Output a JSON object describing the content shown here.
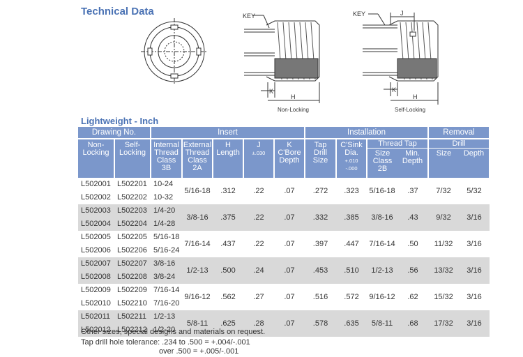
{
  "section_title": "Technical Data",
  "drawings": {
    "key_label_1": "KEY",
    "key_label_2": "KEY",
    "dim_j": "J",
    "dim_k_1": "K",
    "dim_h_1": "H",
    "dim_k_2": "K",
    "dim_h_2": "H",
    "caption_non_locking": "Non-Locking",
    "caption_self_locking": "Self-Locking"
  },
  "table_title": "Lightweight - Inch",
  "headers": {
    "drawing_no": "Drawing No.",
    "insert": "Insert",
    "installation": "Installation",
    "removal": "Removal",
    "non_locking": [
      "Non-",
      "Locking"
    ],
    "self_locking": [
      "Self-",
      "Locking"
    ],
    "internal_thread": [
      "Internal",
      "Thread",
      "Class 3B"
    ],
    "external_thread": [
      "External",
      "Thread",
      "Class",
      "2A"
    ],
    "h_length": [
      "H",
      "Length"
    ],
    "j": "J",
    "j_tol": "±.030",
    "k_cbore": [
      "K",
      "C'Bore",
      "Depth"
    ],
    "tap_drill": [
      "Tap",
      "Drill",
      "Size"
    ],
    "csink": [
      "C'Sink",
      "Dia."
    ],
    "csink_tol": [
      "+.010",
      "-.000"
    ],
    "thread_tap": "Thread Tap",
    "tap_size": [
      "Size",
      "Class 2B"
    ],
    "min_depth": [
      "Min.",
      "Depth"
    ],
    "drill": "Drill",
    "drill_size": "Size",
    "drill_depth": "Depth"
  },
  "rows": [
    {
      "non": [
        "L502001",
        "L502002"
      ],
      "self": [
        "L502201",
        "L502202"
      ],
      "internal": [
        "10-24",
        "10-32"
      ],
      "external": "5/16-18",
      "h": ".312",
      "j": ".22",
      "k": ".07",
      "tap_drill": ".272",
      "csink": ".323",
      "tap_size": "5/16-18",
      "min_depth": ".37",
      "drill_size": "7/32",
      "drill_depth": "5/32"
    },
    {
      "non": [
        "L502003",
        "L502004"
      ],
      "self": [
        "L502203",
        "L502204"
      ],
      "internal": [
        "1/4-20",
        "1/4-28"
      ],
      "external": "3/8-16",
      "h": ".375",
      "j": ".22",
      "k": ".07",
      "tap_drill": ".332",
      "csink": ".385",
      "tap_size": "3/8-16",
      "min_depth": ".43",
      "drill_size": "9/32",
      "drill_depth": "3/16"
    },
    {
      "non": [
        "L502005",
        "L502006"
      ],
      "self": [
        "L502205",
        "L502206"
      ],
      "internal": [
        "5/16-18",
        "5/16-24"
      ],
      "external": "7/16-14",
      "h": ".437",
      "j": ".22",
      "k": ".07",
      "tap_drill": ".397",
      "csink": ".447",
      "tap_size": "7/16-14",
      "min_depth": ".50",
      "drill_size": "11/32",
      "drill_depth": "3/16"
    },
    {
      "non": [
        "L502007",
        "L502008"
      ],
      "self": [
        "L502207",
        "L502208"
      ],
      "internal": [
        "3/8-16",
        "3/8-24"
      ],
      "external": "1/2-13",
      "h": ".500",
      "j": ".24",
      "k": ".07",
      "tap_drill": ".453",
      "csink": ".510",
      "tap_size": "1/2-13",
      "min_depth": ".56",
      "drill_size": "13/32",
      "drill_depth": "3/16"
    },
    {
      "non": [
        "L502009",
        "L502010"
      ],
      "self": [
        "L502209",
        "L502210"
      ],
      "internal": [
        "7/16-14",
        "7/16-20"
      ],
      "external": "9/16-12",
      "h": ".562",
      "j": ".27",
      "k": ".07",
      "tap_drill": ".516",
      "csink": ".572",
      "tap_size": "9/16-12",
      "min_depth": ".62",
      "drill_size": "15/32",
      "drill_depth": "3/16"
    },
    {
      "non": [
        "L502011",
        "L502012"
      ],
      "self": [
        "L502211",
        "L502212"
      ],
      "internal": [
        "1/2-13",
        "1/2-20"
      ],
      "external": "5/8-11",
      "h": ".625",
      "j": ".28",
      "k": ".07",
      "tap_drill": ".578",
      "csink": ".635",
      "tap_size": "5/8-11",
      "min_depth": ".68",
      "drill_size": "17/32",
      "drill_depth": "3/16"
    }
  ],
  "notes": [
    "Other sizes, special designs and materials on request.",
    "Tap drill hole tolerance: .234 to .500 = +.004/-.001",
    "over .500 = +.005/-.001"
  ]
}
